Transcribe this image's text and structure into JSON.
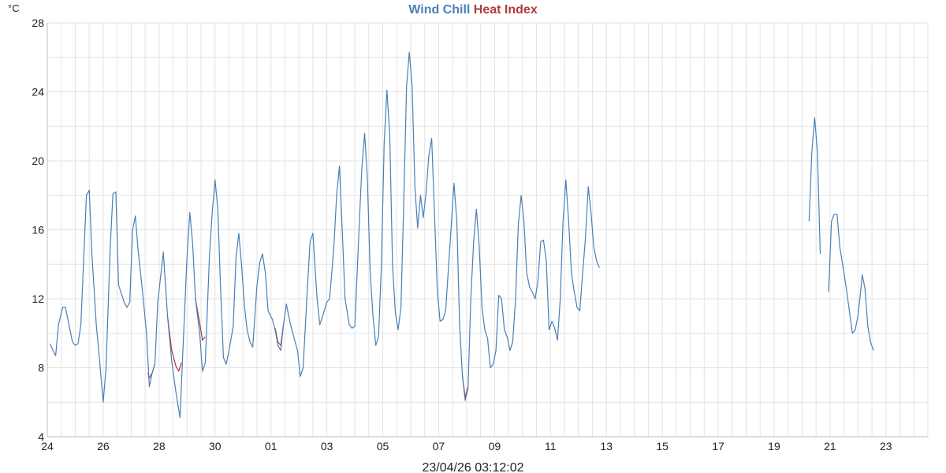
{
  "chart_data": {
    "type": "line",
    "title": "",
    "y_unit": "°C",
    "ylim": [
      4,
      28
    ],
    "y_ticks": [
      4,
      8,
      12,
      16,
      20,
      24,
      28
    ],
    "x_range": [
      0,
      31.5
    ],
    "x_ticks": [
      {
        "x": 0,
        "label": "24"
      },
      {
        "x": 2,
        "label": "26"
      },
      {
        "x": 4,
        "label": "28"
      },
      {
        "x": 6,
        "label": "30"
      },
      {
        "x": 8,
        "label": "01"
      },
      {
        "x": 10,
        "label": "03"
      },
      {
        "x": 12,
        "label": "05"
      },
      {
        "x": 14,
        "label": "07"
      },
      {
        "x": 16,
        "label": "09"
      },
      {
        "x": 18,
        "label": "11"
      },
      {
        "x": 20,
        "label": "13"
      },
      {
        "x": 22,
        "label": "15"
      },
      {
        "x": 24,
        "label": "17"
      },
      {
        "x": 26,
        "label": "19"
      },
      {
        "x": 28,
        "label": "21"
      },
      {
        "x": 30,
        "label": "23"
      }
    ],
    "grid": true,
    "legend": "top-center",
    "footer": "23/04/26 03:12:02",
    "series": [
      {
        "name": "Wind Chill",
        "color": "#4a7fb5",
        "segments": [
          [
            [
              0.1,
              9.4
            ],
            [
              0.2,
              9.0
            ],
            [
              0.3,
              8.7
            ],
            [
              0.4,
              10.5
            ],
            [
              0.55,
              11.5
            ],
            [
              0.65,
              11.5
            ],
            [
              0.9,
              9.5
            ],
            [
              1.0,
              9.3
            ],
            [
              1.1,
              9.4
            ],
            [
              1.2,
              10.5
            ],
            [
              1.4,
              18.0
            ],
            [
              1.5,
              18.3
            ],
            [
              1.6,
              14.5
            ],
            [
              1.75,
              10.5
            ],
            [
              1.85,
              8.8
            ],
            [
              2.0,
              6.0
            ],
            [
              2.1,
              8.0
            ],
            [
              2.25,
              15.0
            ],
            [
              2.35,
              18.1
            ],
            [
              2.45,
              18.2
            ],
            [
              2.55,
              12.8
            ],
            [
              2.75,
              11.8
            ],
            [
              2.85,
              11.5
            ],
            [
              2.95,
              11.8
            ],
            [
              3.05,
              16.0
            ],
            [
              3.15,
              16.8
            ],
            [
              3.25,
              14.8
            ],
            [
              3.4,
              12.5
            ],
            [
              3.55,
              10.0
            ],
            [
              3.65,
              6.9
            ],
            [
              3.75,
              7.7
            ],
            [
              3.85,
              8.2
            ],
            [
              3.95,
              11.8
            ],
            [
              4.15,
              14.7
            ],
            [
              4.3,
              11.0
            ],
            [
              4.45,
              8.4
            ],
            [
              4.6,
              6.6
            ],
            [
              4.75,
              5.1
            ],
            [
              4.85,
              9.0
            ],
            [
              5.0,
              14.5
            ],
            [
              5.1,
              17.0
            ],
            [
              5.2,
              15.2
            ],
            [
              5.3,
              12.0
            ],
            [
              5.45,
              10.0
            ],
            [
              5.55,
              7.8
            ],
            [
              5.65,
              8.3
            ],
            [
              5.8,
              14.5
            ],
            [
              5.9,
              17.0
            ],
            [
              6.0,
              18.9
            ],
            [
              6.1,
              17.2
            ],
            [
              6.2,
              12.5
            ],
            [
              6.3,
              8.6
            ],
            [
              6.4,
              8.2
            ],
            [
              6.5,
              9.0
            ],
            [
              6.65,
              10.4
            ],
            [
              6.75,
              14.4
            ],
            [
              6.85,
              15.8
            ],
            [
              6.95,
              14.0
            ],
            [
              7.05,
              11.6
            ],
            [
              7.15,
              10.2
            ],
            [
              7.25,
              9.5
            ],
            [
              7.35,
              9.2
            ],
            [
              7.5,
              12.8
            ],
            [
              7.6,
              14.1
            ],
            [
              7.7,
              14.6
            ],
            [
              7.8,
              13.5
            ],
            [
              7.9,
              11.3
            ],
            [
              8.05,
              10.8
            ],
            [
              8.15,
              10.2
            ],
            [
              8.25,
              9.3
            ],
            [
              8.35,
              9.0
            ],
            [
              8.45,
              10.5
            ],
            [
              8.55,
              11.7
            ],
            [
              8.7,
              10.5
            ],
            [
              8.85,
              9.6
            ],
            [
              8.95,
              9.0
            ],
            [
              9.05,
              7.5
            ],
            [
              9.15,
              8.0
            ],
            [
              9.3,
              12.5
            ],
            [
              9.4,
              15.3
            ],
            [
              9.5,
              15.8
            ],
            [
              9.65,
              12.0
            ],
            [
              9.75,
              10.5
            ],
            [
              9.85,
              11.0
            ],
            [
              10.0,
              11.8
            ],
            [
              10.1,
              12.0
            ],
            [
              10.25,
              15.0
            ],
            [
              10.35,
              18.0
            ],
            [
              10.45,
              19.7
            ],
            [
              10.55,
              16.0
            ],
            [
              10.65,
              12.0
            ],
            [
              10.8,
              10.5
            ],
            [
              10.9,
              10.3
            ],
            [
              11.0,
              10.4
            ],
            [
              11.15,
              16.0
            ],
            [
              11.25,
              19.5
            ],
            [
              11.35,
              21.6
            ],
            [
              11.45,
              19.0
            ],
            [
              11.55,
              13.5
            ],
            [
              11.65,
              11.0
            ],
            [
              11.75,
              9.3
            ],
            [
              11.85,
              9.8
            ],
            [
              11.95,
              14.0
            ],
            [
              12.05,
              21.0
            ],
            [
              12.15,
              24.1
            ],
            [
              12.25,
              21.5
            ],
            [
              12.35,
              14.0
            ],
            [
              12.45,
              11.2
            ],
            [
              12.55,
              10.2
            ],
            [
              12.65,
              11.5
            ],
            [
              12.75,
              17.5
            ],
            [
              12.85,
              24.3
            ],
            [
              12.95,
              26.3
            ],
            [
              13.05,
              24.3
            ],
            [
              13.15,
              18.5
            ],
            [
              13.25,
              16.1
            ],
            [
              13.35,
              18.0
            ],
            [
              13.45,
              16.7
            ],
            [
              13.55,
              18.2
            ],
            [
              13.65,
              20.3
            ],
            [
              13.75,
              21.3
            ],
            [
              13.85,
              17.0
            ],
            [
              13.95,
              12.5
            ],
            [
              14.05,
              10.7
            ],
            [
              14.15,
              10.8
            ],
            [
              14.25,
              11.3
            ],
            [
              14.4,
              15.0
            ],
            [
              14.55,
              18.7
            ],
            [
              14.65,
              16.5
            ],
            [
              14.75,
              10.5
            ],
            [
              14.85,
              7.5
            ],
            [
              14.95,
              6.1
            ],
            [
              15.05,
              6.8
            ],
            [
              15.15,
              12.0
            ],
            [
              15.25,
              15.3
            ],
            [
              15.35,
              17.2
            ],
            [
              15.45,
              15.0
            ],
            [
              15.55,
              11.5
            ],
            [
              15.65,
              10.2
            ],
            [
              15.75,
              9.7
            ],
            [
              15.85,
              8.0
            ],
            [
              15.95,
              8.2
            ],
            [
              16.05,
              9.0
            ],
            [
              16.15,
              12.2
            ],
            [
              16.25,
              12.0
            ],
            [
              16.35,
              10.2
            ],
            [
              16.45,
              9.8
            ],
            [
              16.55,
              9.0
            ],
            [
              16.65,
              9.5
            ],
            [
              16.75,
              12.0
            ],
            [
              16.85,
              16.3
            ],
            [
              16.95,
              18.0
            ],
            [
              17.05,
              16.5
            ],
            [
              17.15,
              13.5
            ],
            [
              17.25,
              12.7
            ],
            [
              17.35,
              12.4
            ],
            [
              17.45,
              12.0
            ],
            [
              17.55,
              13.0
            ],
            [
              17.65,
              15.3
            ],
            [
              17.75,
              15.4
            ],
            [
              17.85,
              14.2
            ],
            [
              17.95,
              10.2
            ],
            [
              18.05,
              10.7
            ],
            [
              18.15,
              10.3
            ],
            [
              18.25,
              9.6
            ],
            [
              18.35,
              12.0
            ],
            [
              18.45,
              16.5
            ],
            [
              18.55,
              18.9
            ],
            [
              18.65,
              16.5
            ],
            [
              18.75,
              13.5
            ],
            [
              18.85,
              12.4
            ],
            [
              18.95,
              11.5
            ],
            [
              19.05,
              11.3
            ],
            [
              19.15,
              13.5
            ],
            [
              19.25,
              15.5
            ],
            [
              19.35,
              18.5
            ],
            [
              19.45,
              17.0
            ],
            [
              19.55,
              15.0
            ],
            [
              19.65,
              14.2
            ],
            [
              19.75,
              13.8
            ]
          ],
          [
            [
              27.25,
              16.5
            ],
            [
              27.35,
              20.5
            ],
            [
              27.45,
              22.5
            ],
            [
              27.55,
              20.5
            ],
            [
              27.65,
              14.6
            ]
          ],
          [
            [
              27.95,
              12.4
            ],
            [
              28.05,
              16.5
            ],
            [
              28.15,
              16.9
            ],
            [
              28.25,
              16.9
            ],
            [
              28.35,
              15.0
            ],
            [
              28.5,
              13.5
            ],
            [
              28.6,
              12.4
            ],
            [
              28.7,
              11.2
            ],
            [
              28.8,
              10.0
            ],
            [
              28.9,
              10.2
            ],
            [
              29.0,
              11.0
            ],
            [
              29.1,
              12.5
            ],
            [
              29.15,
              13.4
            ],
            [
              29.25,
              12.6
            ],
            [
              29.35,
              10.4
            ],
            [
              29.45,
              9.5
            ],
            [
              29.55,
              9.0
            ]
          ]
        ]
      },
      {
        "name": "Heat Index",
        "color": "#b03a3a",
        "segments": [
          [
            [
              3.6,
              7.7
            ],
            [
              3.65,
              7.4
            ],
            [
              3.75,
              7.7
            ],
            [
              3.85,
              8.2
            ]
          ],
          [
            [
              4.3,
              11.0
            ],
            [
              4.45,
              9.0
            ],
            [
              4.6,
              8.1
            ],
            [
              4.7,
              7.8
            ],
            [
              4.8,
              8.3
            ]
          ],
          [
            [
              5.3,
              12.0
            ],
            [
              5.45,
              10.6
            ],
            [
              5.55,
              9.6
            ],
            [
              5.65,
              9.8
            ]
          ],
          [
            [
              8.15,
              10.3
            ],
            [
              8.25,
              9.5
            ],
            [
              8.35,
              9.3
            ],
            [
              8.45,
              10.5
            ]
          ],
          [
            [
              14.85,
              7.5
            ],
            [
              14.95,
              6.3
            ],
            [
              15.05,
              6.9
            ]
          ]
        ]
      }
    ]
  }
}
